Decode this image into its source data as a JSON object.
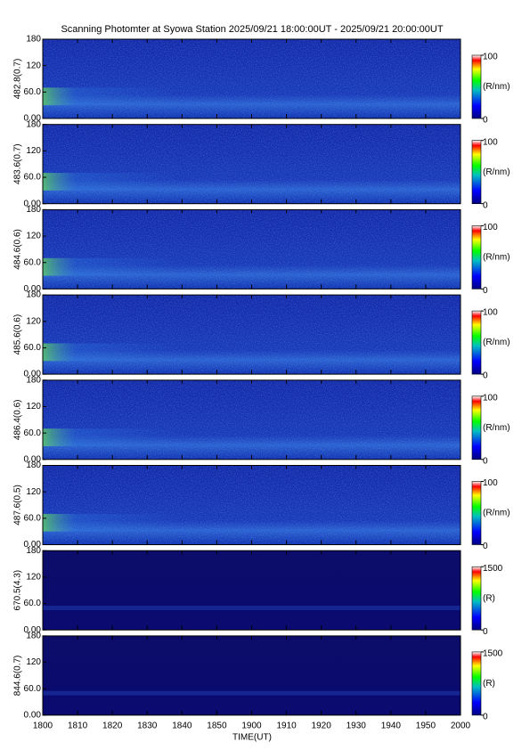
{
  "chart_data": {
    "type": "heatmap",
    "title": "Scanning Photomter at Syowa Station 2025/09/21 18:00:00UT - 2025/09/21 20:00:00UT",
    "xlabel": "TIME(UT)",
    "xticks": [
      "1800",
      "1810",
      "1820",
      "1830",
      "1840",
      "1850",
      "1900",
      "1910",
      "1920",
      "1930",
      "1940",
      "1950",
      "2000"
    ],
    "panels": [
      {
        "ylabel": "482.8(0.7)",
        "ylim": [
          0,
          180
        ],
        "yticks": [
          {
            "value": 0,
            "label": "0.00"
          },
          {
            "value": 60,
            "label": "60.0"
          },
          120,
          180
        ],
        "clabel": "(R/nm)",
        "clim": [
          0,
          100
        ],
        "cticks": [
          0,
          100
        ]
      },
      {
        "ylabel": "483.6(0.7)",
        "ylim": [
          0,
          180
        ],
        "yticks": [
          {
            "value": 0,
            "label": "0.00"
          },
          {
            "value": 60,
            "label": "60.0"
          },
          120,
          180
        ],
        "clabel": "(R/nm)",
        "clim": [
          0,
          100
        ],
        "cticks": [
          0,
          100
        ]
      },
      {
        "ylabel": "484.6(0.6)",
        "ylim": [
          0,
          180
        ],
        "yticks": [
          {
            "value": 0,
            "label": "0.00"
          },
          {
            "value": 60,
            "label": "60.0"
          },
          120,
          180
        ],
        "clabel": "(R/nm)",
        "clim": [
          0,
          100
        ],
        "cticks": [
          0,
          100
        ]
      },
      {
        "ylabel": "485.6(0.6)",
        "ylim": [
          0,
          180
        ],
        "yticks": [
          {
            "value": 0,
            "label": "0.00"
          },
          {
            "value": 60,
            "label": "60.0"
          },
          120,
          180
        ],
        "clabel": "(R/nm)",
        "clim": [
          0,
          100
        ],
        "cticks": [
          0,
          100
        ]
      },
      {
        "ylabel": "486.4(0.6)",
        "ylim": [
          0,
          180
        ],
        "yticks": [
          {
            "value": 0,
            "label": "0.00"
          },
          {
            "value": 60,
            "label": "60.0"
          },
          120,
          180
        ],
        "clabel": "(R/nm)",
        "clim": [
          0,
          100
        ],
        "cticks": [
          0,
          100
        ]
      },
      {
        "ylabel": "487.6(0.5)",
        "ylim": [
          0,
          180
        ],
        "yticks": [
          {
            "value": 0,
            "label": "0.00"
          },
          {
            "value": 60,
            "label": "60.0"
          },
          120,
          180
        ],
        "clabel": "(R/nm)",
        "clim": [
          0,
          100
        ],
        "cticks": [
          0,
          100
        ]
      },
      {
        "ylabel": "670.5(4.3)",
        "ylim": [
          0,
          180
        ],
        "yticks": [
          {
            "value": 0,
            "label": "0.00"
          },
          {
            "value": 60,
            "label": "60.0"
          },
          120,
          180
        ],
        "clabel": "(R)",
        "clim": [
          0,
          1500
        ],
        "cticks": [
          0,
          1500
        ]
      },
      {
        "ylabel": "844.6(0.7)",
        "ylim": [
          0,
          180
        ],
        "yticks": [
          {
            "value": 0,
            "label": "0.00"
          },
          {
            "value": 60,
            "label": "60.0"
          },
          120,
          180
        ],
        "clabel": "(R)",
        "clim": [
          0,
          1500
        ],
        "cticks": [
          0,
          1500
        ]
      }
    ]
  }
}
